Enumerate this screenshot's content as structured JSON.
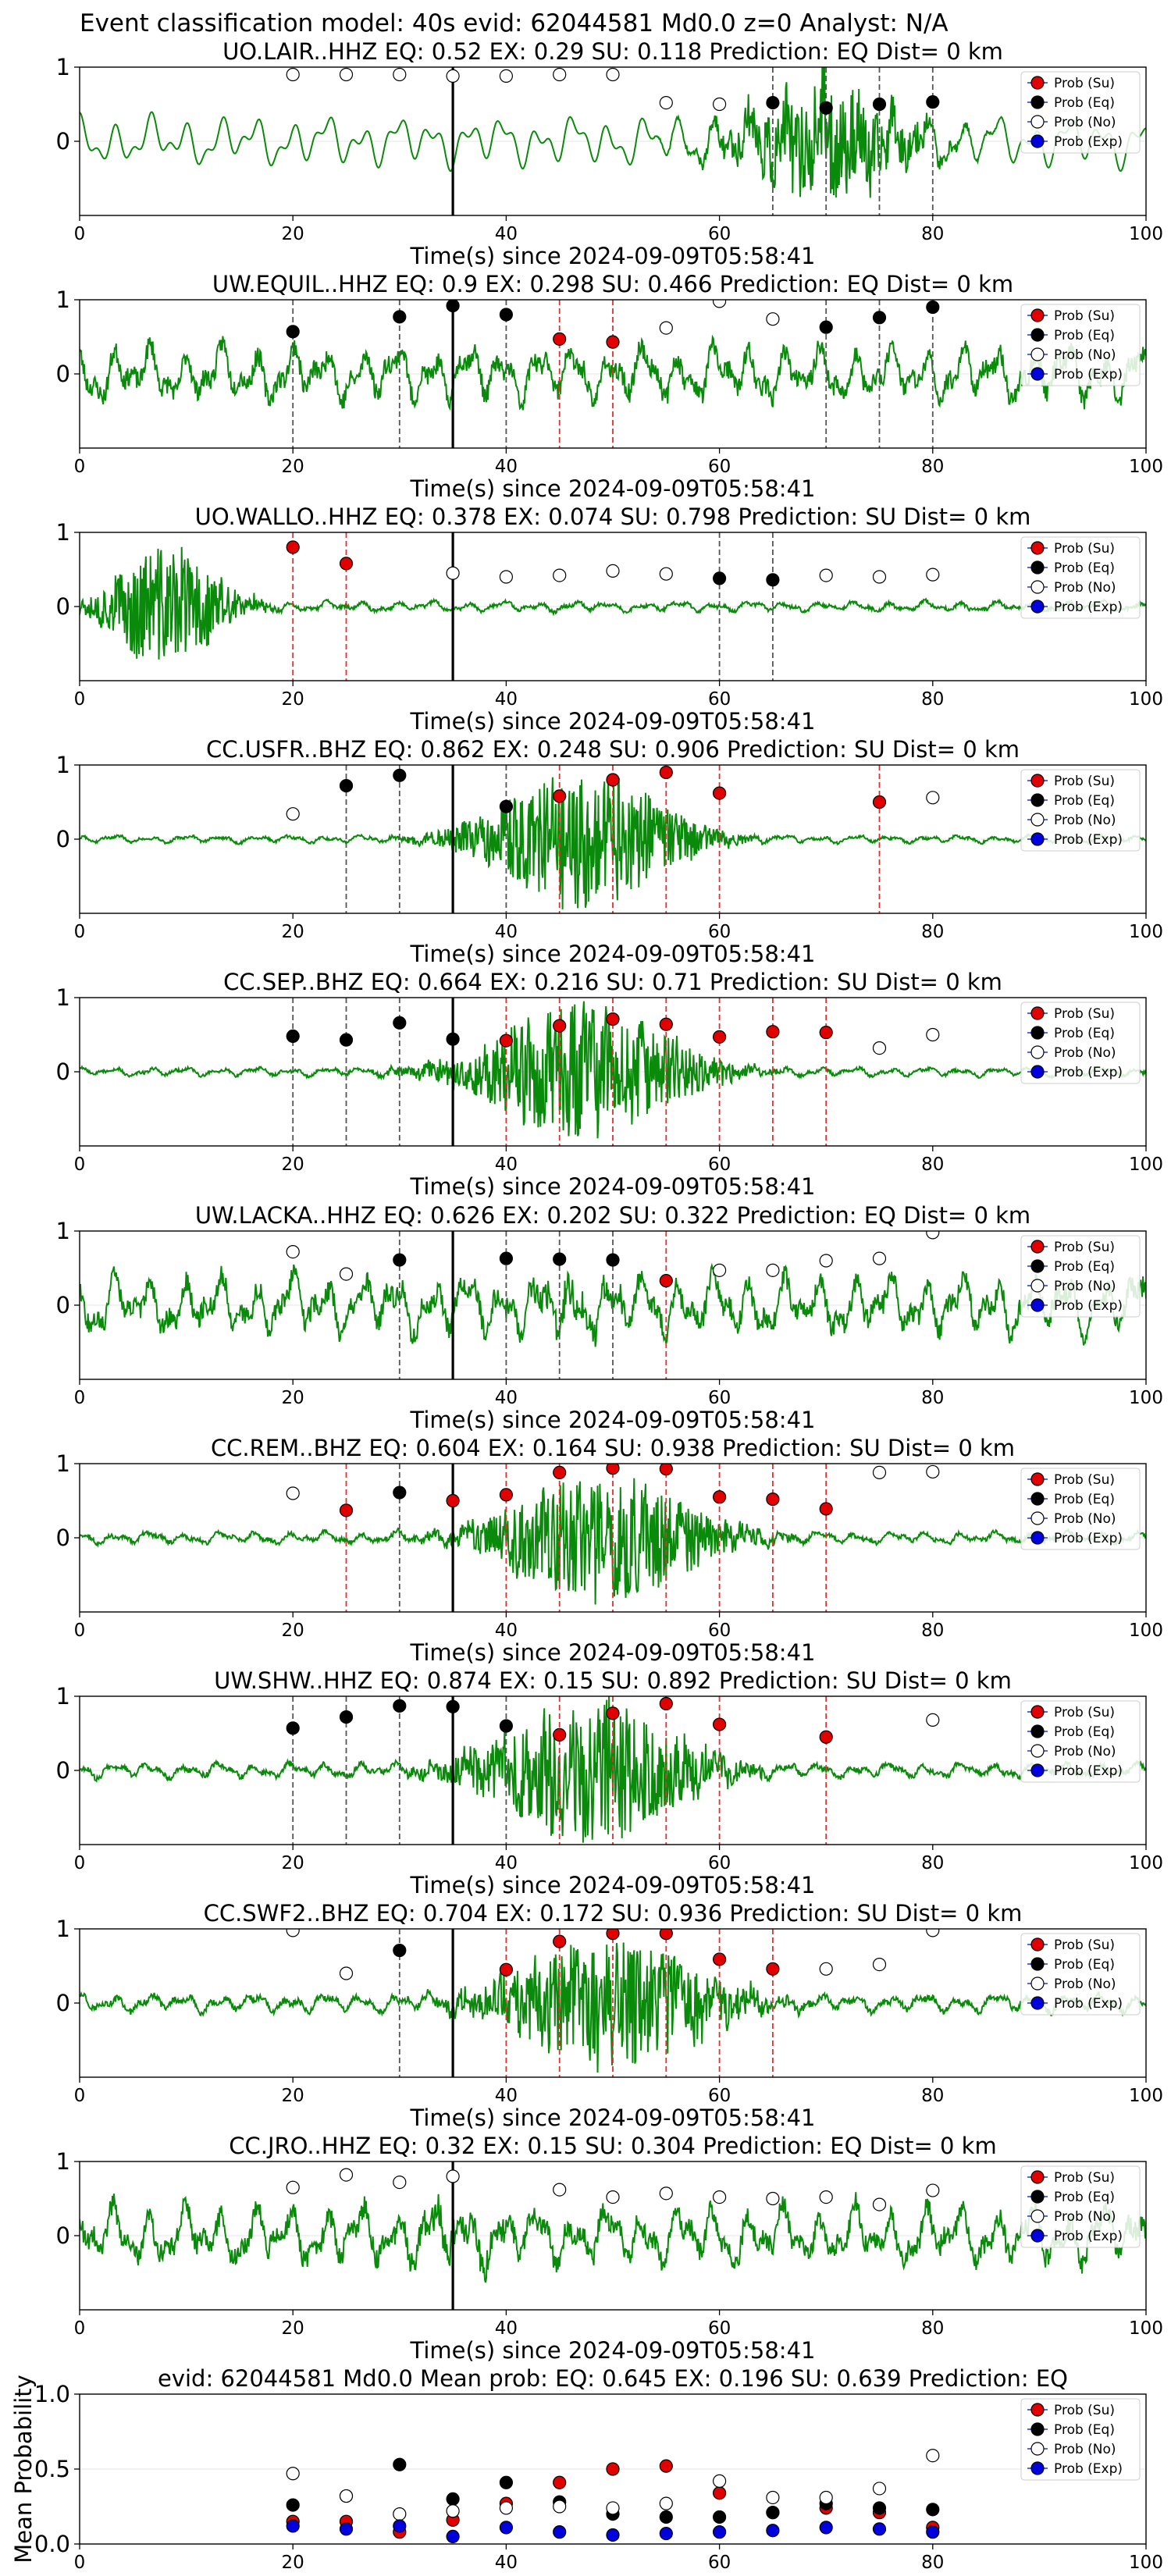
{
  "figure_title": "Event classification model: 40s evid: 62044581 Md0.0 z=0 Analyst: N/A",
  "legend": [
    {
      "label": "Prob (Su)",
      "color": "#e00000"
    },
    {
      "label": "Prob (Eq)",
      "color": "#000000"
    },
    {
      "label": "Prob (No)",
      "color": "#ffffff"
    },
    {
      "label": "Prob (Exp)",
      "color": "#0000dd"
    }
  ],
  "xlabel": "Time(s) since 2024-09-09T05:58:41",
  "xticks": [
    "0",
    "20",
    "40",
    "60",
    "80",
    "100"
  ],
  "chart_data": [
    {
      "type": "line",
      "title": "UO.LAIR..HHZ   EQ: 0.52  EX: 0.29  SU: 0.118   Prediction: EQ    Dist= 0 km",
      "amp": 0.35,
      "burst": 0.45,
      "burst_center": 70,
      "burst_width": 8,
      "smooth": true,
      "seed": 11,
      "xlim": [
        0,
        100
      ],
      "ylim": [
        -1,
        1
      ],
      "yticks": [
        "1",
        "0"
      ],
      "event_line": 35,
      "su": [],
      "eq": [
        [
          65,
          0.52
        ],
        [
          70,
          0.45
        ],
        [
          75,
          0.5
        ],
        [
          80,
          0.53
        ]
      ],
      "no": [
        [
          20,
          0.9
        ],
        [
          25,
          0.9
        ],
        [
          30,
          0.9
        ],
        [
          35,
          0.88
        ],
        [
          40,
          0.88
        ],
        [
          45,
          0.9
        ],
        [
          50,
          0.9
        ],
        [
          55,
          0.52
        ],
        [
          60,
          0.5
        ]
      ],
      "exp": []
    },
    {
      "type": "line",
      "title": "UW.EQUIL..HHZ   EQ: 0.9  EX: 0.298  SU: 0.466   Prediction: EQ    Dist= 0 km",
      "amp": 0.38,
      "burst": 0,
      "burst_center": 45,
      "burst_width": 10,
      "smooth": false,
      "seed": 23,
      "xlim": [
        0,
        100
      ],
      "ylim": [
        -1,
        1
      ],
      "yticks": [
        "1",
        "0"
      ],
      "event_line": 35,
      "su": [
        [
          45,
          0.47
        ],
        [
          50,
          0.43
        ]
      ],
      "eq": [
        [
          20,
          0.57
        ],
        [
          30,
          0.77
        ],
        [
          35,
          0.92
        ],
        [
          40,
          0.8
        ],
        [
          70,
          0.63
        ],
        [
          75,
          0.76
        ],
        [
          80,
          0.9
        ]
      ],
      "no": [
        [
          55,
          0.62
        ],
        [
          60,
          0.98
        ],
        [
          65,
          0.74
        ]
      ],
      "exp": []
    },
    {
      "type": "line",
      "title": "UO.WALLO..HHZ   EQ: 0.378  EX: 0.074  SU: 0.798   Prediction: SU    Dist= 0 km",
      "amp": 0.07,
      "burst": 0.5,
      "burst_center": 8,
      "burst_width": 6,
      "smooth": false,
      "seed": 37,
      "xlim": [
        0,
        100
      ],
      "ylim": [
        -1,
        1
      ],
      "yticks": [
        "1",
        "0"
      ],
      "event_line": 35,
      "su": [
        [
          20,
          0.8
        ],
        [
          25,
          0.58
        ]
      ],
      "eq": [
        [
          60,
          0.38
        ],
        [
          65,
          0.36
        ]
      ],
      "no": [
        [
          35,
          0.45
        ],
        [
          40,
          0.4
        ],
        [
          45,
          0.42
        ],
        [
          50,
          0.48
        ],
        [
          55,
          0.44
        ],
        [
          70,
          0.42
        ],
        [
          75,
          0.4
        ],
        [
          80,
          0.43
        ]
      ],
      "exp": []
    },
    {
      "type": "line",
      "title": "CC.USFR..BHZ   EQ: 0.862  EX: 0.248  SU: 0.906   Prediction: SU    Dist= 0 km",
      "amp": 0.05,
      "burst": 0.6,
      "burst_center": 47,
      "burst_width": 9,
      "smooth": false,
      "seed": 41,
      "xlim": [
        0,
        100
      ],
      "ylim": [
        -1,
        1
      ],
      "yticks": [
        "1",
        "0"
      ],
      "event_line": 35,
      "su": [
        [
          45,
          0.58
        ],
        [
          50,
          0.8
        ],
        [
          55,
          0.9
        ],
        [
          60,
          0.62
        ],
        [
          75,
          0.5
        ]
      ],
      "eq": [
        [
          25,
          0.72
        ],
        [
          30,
          0.86
        ],
        [
          40,
          0.44
        ]
      ],
      "no": [
        [
          20,
          0.34
        ],
        [
          80,
          0.56
        ]
      ],
      "exp": []
    },
    {
      "type": "line",
      "title": "CC.SEP..BHZ   EQ: 0.664  EX: 0.216  SU: 0.71   Prediction: SU    Dist= 0 km",
      "amp": 0.06,
      "burst": 0.6,
      "burst_center": 47,
      "burst_width": 10,
      "smooth": false,
      "seed": 53,
      "xlim": [
        0,
        100
      ],
      "ylim": [
        -1,
        1
      ],
      "yticks": [
        "1",
        "0"
      ],
      "event_line": 35,
      "su": [
        [
          40,
          0.42
        ],
        [
          45,
          0.62
        ],
        [
          50,
          0.71
        ],
        [
          55,
          0.64
        ],
        [
          60,
          0.47
        ],
        [
          65,
          0.54
        ],
        [
          70,
          0.53
        ]
      ],
      "eq": [
        [
          20,
          0.48
        ],
        [
          25,
          0.43
        ],
        [
          30,
          0.66
        ],
        [
          35,
          0.44
        ]
      ],
      "no": [
        [
          75,
          0.32
        ],
        [
          80,
          0.5
        ]
      ],
      "exp": []
    },
    {
      "type": "line",
      "title": "UW.LACKA..HHZ   EQ: 0.626  EX: 0.202  SU: 0.322   Prediction: EQ    Dist= 0 km",
      "amp": 0.4,
      "burst": 0.1,
      "burst_center": 45,
      "burst_width": 6,
      "smooth": false,
      "seed": 67,
      "xlim": [
        0,
        100
      ],
      "ylim": [
        -1,
        1
      ],
      "yticks": [
        "1",
        "0"
      ],
      "event_line": 35,
      "su": [
        [
          55,
          0.33
        ]
      ],
      "eq": [
        [
          30,
          0.61
        ],
        [
          40,
          0.63
        ],
        [
          45,
          0.62
        ],
        [
          50,
          0.61
        ]
      ],
      "no": [
        [
          20,
          0.72
        ],
        [
          25,
          0.42
        ],
        [
          60,
          0.47
        ],
        [
          65,
          0.47
        ],
        [
          70,
          0.6
        ],
        [
          75,
          0.63
        ],
        [
          80,
          0.98
        ]
      ],
      "exp": []
    },
    {
      "type": "line",
      "title": "CC.REM..BHZ   EQ: 0.604  EX: 0.164  SU: 0.938   Prediction: SU    Dist= 0 km",
      "amp": 0.08,
      "burst": 0.55,
      "burst_center": 49,
      "burst_width": 10,
      "smooth": false,
      "seed": 71,
      "xlim": [
        0,
        100
      ],
      "ylim": [
        -1,
        1
      ],
      "yticks": [
        "1",
        "0"
      ],
      "event_line": 35,
      "su": [
        [
          25,
          0.37
        ],
        [
          35,
          0.5
        ],
        [
          40,
          0.58
        ],
        [
          45,
          0.88
        ],
        [
          50,
          0.94
        ],
        [
          55,
          0.93
        ],
        [
          60,
          0.55
        ],
        [
          65,
          0.52
        ],
        [
          70,
          0.39
        ]
      ],
      "eq": [
        [
          30,
          0.61
        ]
      ],
      "no": [
        [
          20,
          0.6
        ],
        [
          75,
          0.88
        ],
        [
          80,
          0.89
        ]
      ],
      "exp": []
    },
    {
      "type": "line",
      "title": "UW.SHW..HHZ   EQ: 0.874  EX: 0.15  SU: 0.892   Prediction: SU    Dist= 0 km",
      "amp": 0.1,
      "burst": 0.6,
      "burst_center": 48,
      "burst_width": 10,
      "smooth": false,
      "seed": 83,
      "xlim": [
        0,
        100
      ],
      "ylim": [
        -1,
        1
      ],
      "yticks": [
        "1",
        "0"
      ],
      "event_line": 35,
      "su": [
        [
          45,
          0.48
        ],
        [
          50,
          0.77
        ],
        [
          55,
          0.9
        ],
        [
          60,
          0.62
        ],
        [
          70,
          0.45
        ]
      ],
      "eq": [
        [
          20,
          0.57
        ],
        [
          25,
          0.72
        ],
        [
          30,
          0.87
        ],
        [
          35,
          0.86
        ],
        [
          40,
          0.6
        ]
      ],
      "no": [
        [
          80,
          0.68
        ]
      ],
      "exp": []
    },
    {
      "type": "line",
      "title": "CC.SWF2..BHZ   EQ: 0.704  EX: 0.172  SU: 0.936   Prediction: SU    Dist= 0 km",
      "amp": 0.12,
      "burst": 0.6,
      "burst_center": 50,
      "burst_width": 10,
      "smooth": false,
      "seed": 97,
      "xlim": [
        0,
        100
      ],
      "ylim": [
        -1,
        1
      ],
      "yticks": [
        "1",
        "0"
      ],
      "event_line": 35,
      "su": [
        [
          40,
          0.45
        ],
        [
          45,
          0.83
        ],
        [
          50,
          0.94
        ],
        [
          55,
          0.94
        ],
        [
          60,
          0.59
        ],
        [
          65,
          0.46
        ]
      ],
      "eq": [
        [
          30,
          0.71
        ]
      ],
      "no": [
        [
          20,
          0.98
        ],
        [
          25,
          0.4
        ],
        [
          70,
          0.46
        ],
        [
          75,
          0.52
        ],
        [
          80,
          0.98
        ]
      ],
      "exp": []
    },
    {
      "type": "line",
      "title": "CC.JRO..HHZ   EQ: 0.32  EX: 0.15  SU: 0.304   Prediction: EQ    Dist= 0 km",
      "amp": 0.4,
      "burst": 0.1,
      "burst_center": 35,
      "burst_width": 5,
      "smooth": false,
      "seed": 101,
      "xlim": [
        0,
        100
      ],
      "ylim": [
        -1,
        1
      ],
      "yticks": [
        "1",
        "0"
      ],
      "event_line": 35,
      "su": [],
      "eq": [],
      "no": [
        [
          20,
          0.65
        ],
        [
          25,
          0.82
        ],
        [
          30,
          0.72
        ],
        [
          35,
          0.8
        ],
        [
          45,
          0.62
        ],
        [
          50,
          0.52
        ],
        [
          55,
          0.57
        ],
        [
          60,
          0.52
        ],
        [
          65,
          0.5
        ],
        [
          70,
          0.52
        ],
        [
          75,
          0.42
        ],
        [
          80,
          0.61
        ]
      ],
      "exp": []
    },
    {
      "type": "scatter",
      "title": "evid: 62044581  Md0.0   Mean prob:   EQ: 0.645  EX: 0.196  SU: 0.639   Prediction: EQ",
      "ylabel": "Mean Probability",
      "xlim": [
        0,
        100
      ],
      "ylim": [
        0,
        1
      ],
      "yticks": [
        "0.0",
        "0.5",
        "1.0"
      ],
      "su": [
        [
          20,
          0.15
        ],
        [
          25,
          0.15
        ],
        [
          30,
          0.08
        ],
        [
          35,
          0.16
        ],
        [
          40,
          0.27
        ],
        [
          45,
          0.41
        ],
        [
          50,
          0.5
        ],
        [
          55,
          0.52
        ],
        [
          60,
          0.34
        ],
        [
          65,
          0.21
        ],
        [
          70,
          0.24
        ],
        [
          75,
          0.21
        ],
        [
          80,
          0.11
        ]
      ],
      "eq": [
        [
          20,
          0.26
        ],
        [
          25,
          0.32
        ],
        [
          30,
          0.53
        ],
        [
          35,
          0.3
        ],
        [
          40,
          0.41
        ],
        [
          45,
          0.28
        ],
        [
          50,
          0.2
        ],
        [
          55,
          0.18
        ],
        [
          60,
          0.18
        ],
        [
          65,
          0.21
        ],
        [
          70,
          0.27
        ],
        [
          75,
          0.24
        ],
        [
          80,
          0.23
        ]
      ],
      "no": [
        [
          20,
          0.47
        ],
        [
          25,
          0.32
        ],
        [
          30,
          0.2
        ],
        [
          35,
          0.22
        ],
        [
          40,
          0.24
        ],
        [
          45,
          0.25
        ],
        [
          50,
          0.24
        ],
        [
          55,
          0.27
        ],
        [
          60,
          0.42
        ],
        [
          65,
          0.31
        ],
        [
          70,
          0.31
        ],
        [
          75,
          0.37
        ],
        [
          80,
          0.59
        ]
      ],
      "exp": [
        [
          20,
          0.12
        ],
        [
          25,
          0.1
        ],
        [
          30,
          0.12
        ],
        [
          35,
          0.05
        ],
        [
          40,
          0.11
        ],
        [
          45,
          0.08
        ],
        [
          50,
          0.06
        ],
        [
          55,
          0.07
        ],
        [
          60,
          0.08
        ],
        [
          65,
          0.09
        ],
        [
          70,
          0.11
        ],
        [
          75,
          0.1
        ],
        [
          80,
          0.08
        ]
      ]
    }
  ]
}
